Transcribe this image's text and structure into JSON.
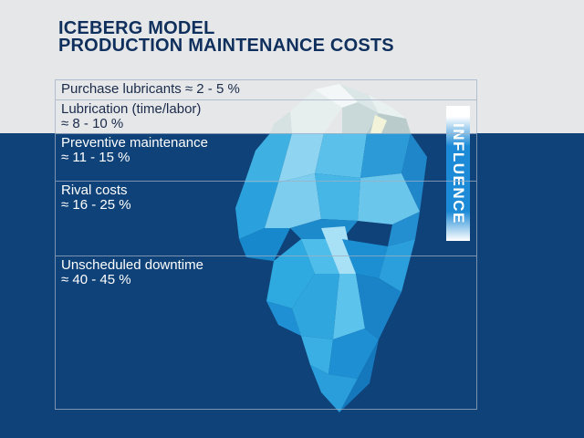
{
  "title": {
    "line1": "ICEBERG MODEL",
    "line2": "PRODUCTION MAINTENANCE COSTS"
  },
  "cost_rows": [
    {
      "line1": "Purchase lubricants ≈ 2 - 5 %",
      "line2": ""
    },
    {
      "line1": "Lubrication (time/labor)",
      "line2": "≈ 8 - 10 %"
    },
    {
      "line1": "Preventive maintenance",
      "line2": "≈ 11 - 15 %"
    },
    {
      "line1": "Rival costs",
      "line2": "≈ 16 - 25 %"
    },
    {
      "line1": "Unscheduled downtime",
      "line2": "≈ 40 - 45 %"
    }
  ],
  "influence_label": "INFLUENCE",
  "colors": {
    "sky": "#e6e7e9",
    "water": "#0f4278",
    "title": "#0f2f5c",
    "ice_light": "#d9e4e4",
    "ice_blue": "#2aa7df",
    "influence_bar": "#1c8ad6"
  }
}
